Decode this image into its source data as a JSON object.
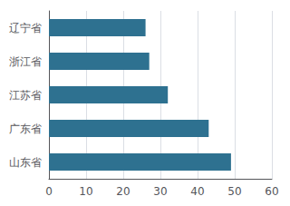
{
  "chart_data": {
    "type": "bar",
    "orientation": "horizontal",
    "categories": [
      "山东省",
      "广东省",
      "江苏省",
      "浙江省",
      "辽宁省"
    ],
    "values": [
      49,
      43,
      32,
      27,
      26
    ],
    "color": "#2e7190",
    "xlim": [
      0,
      60
    ],
    "xticks": [
      0,
      10,
      20,
      30,
      40,
      50,
      60
    ],
    "grid": true
  }
}
